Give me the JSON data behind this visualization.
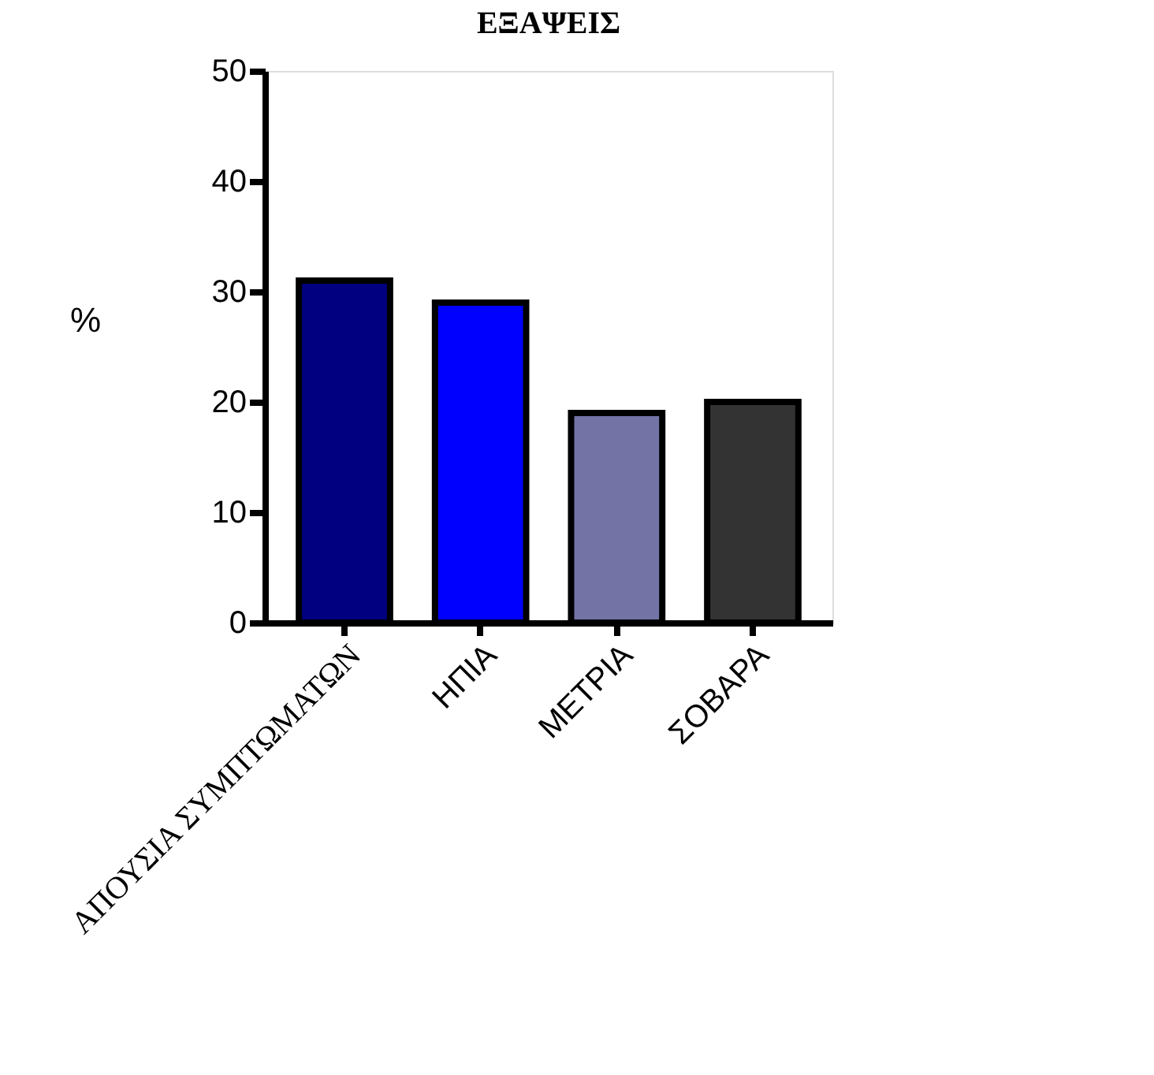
{
  "chart_data": {
    "type": "bar",
    "title": "ΕΞΑΨΕΙΣ",
    "ylabel": "%",
    "categories": [
      "ΑΠΟΥΣΙΑ ΣΥΜΠΤΩΜΑΤΩΝ",
      "ΗΠΙΑ",
      "ΜΕΤΡΙΑ",
      "ΣΟΒΑΡΑ"
    ],
    "values": [
      31,
      29,
      19,
      20
    ],
    "colors": [
      "#000080",
      "#0000ff",
      "#7373a6",
      "#333333"
    ],
    "ylim": [
      0,
      50
    ],
    "yticks": [
      0,
      10,
      20,
      30,
      40,
      50
    ],
    "grid": false
  }
}
